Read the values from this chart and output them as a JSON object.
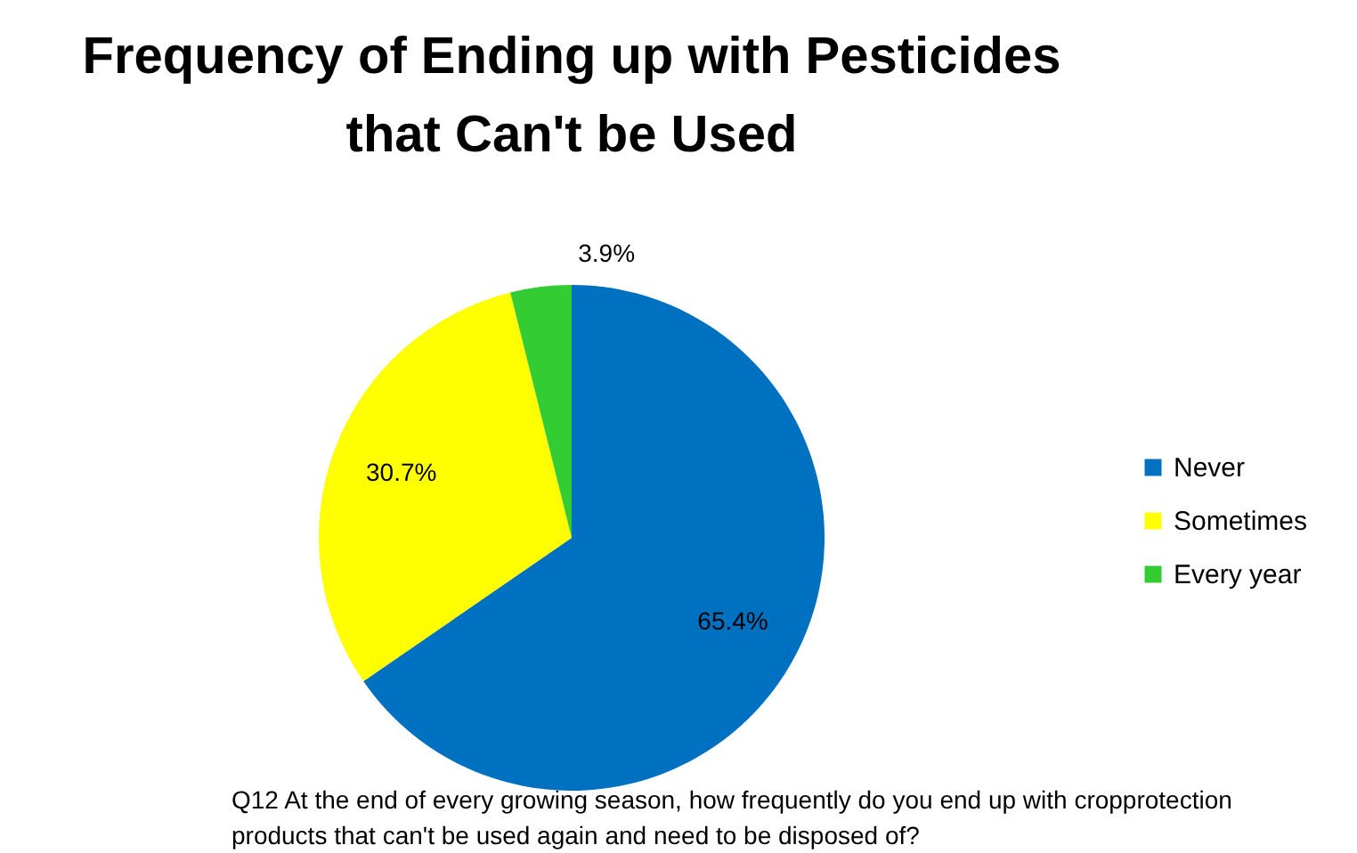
{
  "chart_data": {
    "type": "pie",
    "title": "Frequency of Ending up with Pesticides that Can't be Used",
    "categories": [
      "Never",
      "Sometimes",
      "Every year"
    ],
    "values": [
      65.4,
      30.7,
      3.9
    ],
    "colors": [
      "#0070c0",
      "#ffff00",
      "#33cc33"
    ],
    "value_labels": [
      "65.4%",
      "30.7%",
      "3.9%"
    ],
    "legend": "right",
    "annotations": [
      "Q12 At the end of every growing season, how frequently do you end up with cropprotection products that can't be used again and need to be disposed of?"
    ]
  }
}
